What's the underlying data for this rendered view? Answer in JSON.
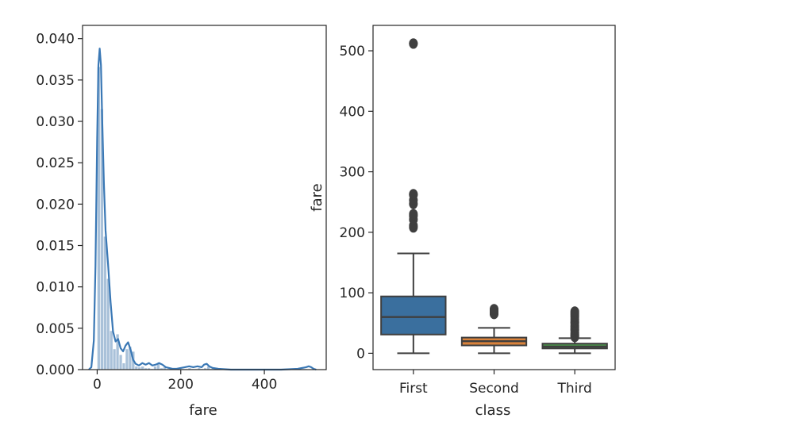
{
  "chart_data": [
    {
      "type": "histogram+kde",
      "xlabel": "fare",
      "ylabel": "",
      "xlim": [
        -35,
        548
      ],
      "ylim": [
        0,
        0.0416
      ],
      "xticks": [
        0,
        200,
        400
      ],
      "xtick_labels": [
        "0",
        "200",
        "400"
      ],
      "yticks": [
        0,
        0.005,
        0.01,
        0.015,
        0.02,
        0.025,
        0.03,
        0.035,
        0.04
      ],
      "ytick_labels": [
        "0.000",
        "0.005",
        "0.010",
        "0.015",
        "0.020",
        "0.025",
        "0.030",
        "0.035",
        "0.040"
      ],
      "grid": false,
      "color": "#3a78b5",
      "bar_fill": "#a9c1d9",
      "histogram": {
        "bin_edges": [
          0,
          7.5,
          15,
          22.5,
          30,
          37.5,
          45,
          52.5,
          60,
          67.5,
          75,
          82.5,
          90,
          97.5,
          105,
          112.5,
          120,
          127.5,
          135,
          142.5,
          150,
          157.5,
          165,
          210,
          217.5,
          225,
          232.5,
          240,
          247.5,
          255,
          262.5,
          270,
          502.5,
          510,
          517.5
        ],
        "density": [
          0.0366,
          0.0315,
          0.0161,
          0.011,
          0.0047,
          0.0025,
          0.0043,
          0.0018,
          0.0008,
          0.0025,
          0.0028,
          0.0022,
          0.0004,
          0.0003,
          0.0004,
          0.0002,
          0.0002,
          0.0001,
          0.0004,
          0.0007,
          0.0002,
          0.0003,
          0.0001,
          0.0001,
          0.0002,
          0.0001,
          0.0001,
          0.0002,
          0.0001,
          0.0002,
          0.0004,
          0.0001,
          0.0,
          0.0,
          0.0003
        ]
      },
      "kde": {
        "x": [
          -20,
          -14,
          -8,
          -4,
          0,
          3,
          6,
          9,
          12,
          16,
          20,
          26,
          32,
          38,
          44,
          50,
          56,
          62,
          68,
          74,
          80,
          86,
          92,
          100,
          108,
          116,
          124,
          132,
          140,
          148,
          156,
          164,
          172,
          180,
          190,
          200,
          210,
          220,
          230,
          240,
          250,
          256,
          262,
          268,
          276,
          290,
          320,
          360,
          400,
          440,
          480,
          500,
          506,
          512,
          518,
          524
        ],
        "y": [
          0.0,
          0.0003,
          0.0035,
          0.0125,
          0.0278,
          0.0368,
          0.0388,
          0.0368,
          0.0305,
          0.0225,
          0.0168,
          0.0128,
          0.0082,
          0.0046,
          0.0034,
          0.0037,
          0.0026,
          0.0022,
          0.0029,
          0.0033,
          0.0024,
          0.0012,
          0.0007,
          0.0005,
          0.0008,
          0.0006,
          0.0008,
          0.0005,
          0.0006,
          0.0008,
          0.0006,
          0.0003,
          0.0002,
          0.0001,
          0.0001,
          0.0002,
          0.0003,
          0.0004,
          0.0003,
          0.0004,
          0.0003,
          0.0006,
          0.0007,
          0.0004,
          0.0002,
          0.0001,
          0.0,
          0.0,
          0.0,
          0.0,
          0.0001,
          0.0003,
          0.0004,
          0.0003,
          0.0001,
          0.0
        ]
      }
    },
    {
      "type": "box",
      "xlabel": "class",
      "ylabel": "fare",
      "ylim": [
        -27,
        542
      ],
      "yticks": [
        0,
        100,
        200,
        300,
        400,
        500
      ],
      "ytick_labels": [
        "0",
        "100",
        "200",
        "300",
        "400",
        "500"
      ],
      "categories": [
        "First",
        "Second",
        "Third"
      ],
      "grid": false,
      "boxes": [
        {
          "name": "First",
          "color": "#3a6f9e",
          "whislo": 0,
          "q1": 31,
          "med": 60,
          "q3": 94,
          "whishi": 165,
          "fliers": [
            208,
            211,
            221,
            227,
            230,
            247,
            253,
            262,
            263,
            512,
            512
          ]
        },
        {
          "name": "Second",
          "color": "#d9823b",
          "whislo": 0,
          "q1": 13,
          "med": 20,
          "q3": 26,
          "whishi": 42,
          "fliers": [
            65,
            66,
            68,
            70,
            72,
            73
          ]
        },
        {
          "name": "Third",
          "color": "#4a8f4a",
          "whislo": 0,
          "q1": 8,
          "med": 11,
          "q3": 16,
          "whishi": 25,
          "fliers": [
            27,
            29,
            31,
            34,
            38,
            40,
            43,
            46,
            50,
            52,
            56,
            60,
            63,
            66,
            69
          ]
        }
      ]
    }
  ]
}
